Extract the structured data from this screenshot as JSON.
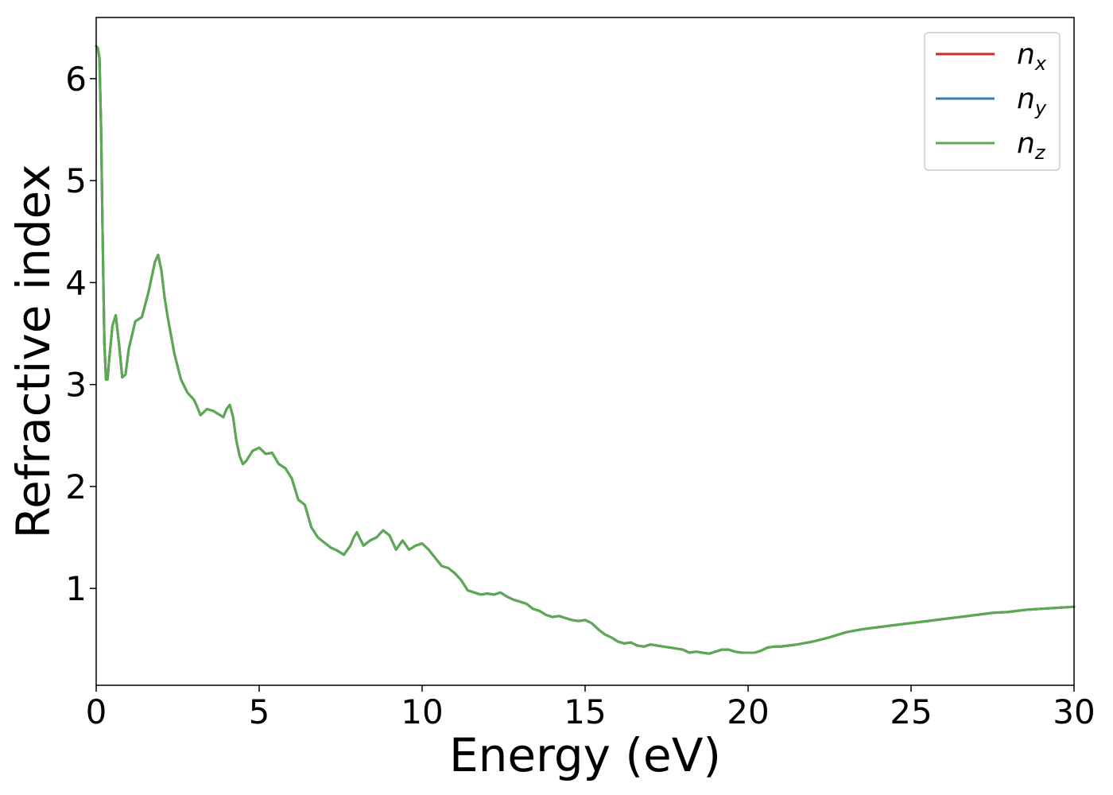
{
  "chart_data": {
    "type": "line",
    "xlabel": "Energy (eV)",
    "ylabel": "Refractive index",
    "xlim": [
      0,
      30
    ],
    "ylim": [
      0.05,
      6.6
    ],
    "xticks": [
      0,
      5,
      10,
      15,
      20,
      25,
      30
    ],
    "yticks": [
      1,
      2,
      3,
      4,
      5,
      6
    ],
    "grid": false,
    "legend_position": "top-right",
    "x": [
      0.0,
      0.05,
      0.1,
      0.15,
      0.2,
      0.25,
      0.3,
      0.35,
      0.4,
      0.5,
      0.6,
      0.7,
      0.8,
      0.9,
      1.0,
      1.2,
      1.4,
      1.6,
      1.7,
      1.8,
      1.9,
      2.0,
      2.1,
      2.2,
      2.4,
      2.6,
      2.8,
      3.0,
      3.1,
      3.2,
      3.4,
      3.6,
      3.8,
      3.9,
      4.0,
      4.1,
      4.2,
      4.3,
      4.4,
      4.5,
      4.6,
      4.8,
      5.0,
      5.2,
      5.4,
      5.6,
      5.8,
      6.0,
      6.2,
      6.4,
      6.6,
      6.8,
      7.0,
      7.2,
      7.4,
      7.6,
      7.8,
      7.9,
      8.0,
      8.2,
      8.4,
      8.6,
      8.8,
      9.0,
      9.2,
      9.4,
      9.6,
      9.8,
      10.0,
      10.2,
      10.4,
      10.6,
      10.8,
      11.0,
      11.2,
      11.4,
      11.6,
      11.8,
      12.0,
      12.2,
      12.4,
      12.6,
      12.8,
      13.0,
      13.2,
      13.4,
      13.6,
      13.8,
      14.0,
      14.2,
      14.4,
      14.6,
      14.8,
      15.0,
      15.2,
      15.4,
      15.6,
      15.8,
      16.0,
      16.2,
      16.4,
      16.6,
      16.8,
      17.0,
      17.2,
      17.4,
      17.6,
      17.8,
      18.0,
      18.2,
      18.4,
      18.6,
      18.8,
      19.0,
      19.2,
      19.4,
      19.6,
      19.8,
      20.0,
      20.2,
      20.4,
      20.6,
      20.8,
      21.0,
      21.5,
      22.0,
      22.5,
      23.0,
      23.5,
      24.0,
      24.5,
      25.0,
      25.5,
      26.0,
      26.5,
      27.0,
      27.5,
      28.0,
      28.5,
      29.0,
      29.5,
      30.0
    ],
    "series": [
      {
        "name": "n_x",
        "color": "#d62728",
        "y": [
          6.32,
          6.3,
          6.2,
          5.5,
          4.4,
          3.4,
          3.05,
          3.05,
          3.25,
          3.58,
          3.68,
          3.4,
          3.07,
          3.1,
          3.35,
          3.62,
          3.66,
          3.9,
          4.05,
          4.2,
          4.27,
          4.12,
          3.85,
          3.65,
          3.3,
          3.05,
          2.92,
          2.85,
          2.78,
          2.7,
          2.76,
          2.74,
          2.7,
          2.68,
          2.76,
          2.8,
          2.68,
          2.45,
          2.3,
          2.22,
          2.25,
          2.35,
          2.38,
          2.32,
          2.33,
          2.22,
          2.18,
          2.08,
          1.87,
          1.82,
          1.6,
          1.5,
          1.45,
          1.4,
          1.37,
          1.33,
          1.42,
          1.5,
          1.55,
          1.42,
          1.47,
          1.5,
          1.57,
          1.52,
          1.38,
          1.47,
          1.38,
          1.42,
          1.44,
          1.38,
          1.3,
          1.22,
          1.2,
          1.15,
          1.08,
          0.98,
          0.96,
          0.94,
          0.95,
          0.94,
          0.96,
          0.92,
          0.89,
          0.87,
          0.85,
          0.8,
          0.78,
          0.74,
          0.72,
          0.73,
          0.71,
          0.69,
          0.68,
          0.69,
          0.66,
          0.6,
          0.55,
          0.52,
          0.48,
          0.46,
          0.47,
          0.44,
          0.43,
          0.45,
          0.44,
          0.43,
          0.42,
          0.41,
          0.4,
          0.37,
          0.38,
          0.37,
          0.36,
          0.38,
          0.4,
          0.4,
          0.38,
          0.37,
          0.37,
          0.37,
          0.39,
          0.42,
          0.43,
          0.43,
          0.45,
          0.48,
          0.52,
          0.57,
          0.6,
          0.62,
          0.64,
          0.66,
          0.68,
          0.7,
          0.72,
          0.74,
          0.76,
          0.77,
          0.79,
          0.8,
          0.81,
          0.82
        ]
      },
      {
        "name": "n_y",
        "color": "#3a7bb0",
        "y": [
          6.32,
          6.3,
          6.2,
          5.5,
          4.4,
          3.4,
          3.05,
          3.05,
          3.25,
          3.58,
          3.68,
          3.4,
          3.07,
          3.1,
          3.35,
          3.62,
          3.66,
          3.9,
          4.05,
          4.2,
          4.27,
          4.12,
          3.85,
          3.65,
          3.3,
          3.05,
          2.92,
          2.85,
          2.78,
          2.7,
          2.76,
          2.74,
          2.7,
          2.68,
          2.76,
          2.8,
          2.68,
          2.45,
          2.3,
          2.22,
          2.25,
          2.35,
          2.38,
          2.32,
          2.33,
          2.22,
          2.18,
          2.08,
          1.87,
          1.82,
          1.6,
          1.5,
          1.45,
          1.4,
          1.37,
          1.33,
          1.42,
          1.5,
          1.55,
          1.42,
          1.47,
          1.5,
          1.57,
          1.52,
          1.38,
          1.47,
          1.38,
          1.42,
          1.44,
          1.38,
          1.3,
          1.22,
          1.2,
          1.15,
          1.08,
          0.98,
          0.96,
          0.94,
          0.95,
          0.94,
          0.96,
          0.92,
          0.89,
          0.87,
          0.85,
          0.8,
          0.78,
          0.74,
          0.72,
          0.73,
          0.71,
          0.69,
          0.68,
          0.69,
          0.66,
          0.6,
          0.55,
          0.52,
          0.48,
          0.46,
          0.47,
          0.44,
          0.43,
          0.45,
          0.44,
          0.43,
          0.42,
          0.41,
          0.4,
          0.37,
          0.38,
          0.37,
          0.36,
          0.38,
          0.4,
          0.4,
          0.38,
          0.37,
          0.37,
          0.37,
          0.39,
          0.42,
          0.43,
          0.43,
          0.45,
          0.48,
          0.52,
          0.57,
          0.6,
          0.62,
          0.64,
          0.66,
          0.68,
          0.7,
          0.72,
          0.74,
          0.76,
          0.77,
          0.79,
          0.8,
          0.81,
          0.82
        ]
      },
      {
        "name": "n_z",
        "color": "#5aaa50",
        "y": [
          6.32,
          6.3,
          6.2,
          5.5,
          4.4,
          3.4,
          3.05,
          3.05,
          3.25,
          3.58,
          3.68,
          3.4,
          3.07,
          3.1,
          3.35,
          3.62,
          3.66,
          3.9,
          4.05,
          4.2,
          4.27,
          4.12,
          3.85,
          3.65,
          3.3,
          3.05,
          2.92,
          2.85,
          2.78,
          2.7,
          2.76,
          2.74,
          2.7,
          2.68,
          2.76,
          2.8,
          2.68,
          2.45,
          2.3,
          2.22,
          2.25,
          2.35,
          2.38,
          2.32,
          2.33,
          2.22,
          2.18,
          2.08,
          1.87,
          1.82,
          1.6,
          1.5,
          1.45,
          1.4,
          1.37,
          1.33,
          1.42,
          1.5,
          1.55,
          1.42,
          1.47,
          1.5,
          1.57,
          1.52,
          1.38,
          1.47,
          1.38,
          1.42,
          1.44,
          1.38,
          1.3,
          1.22,
          1.2,
          1.15,
          1.08,
          0.98,
          0.96,
          0.94,
          0.95,
          0.94,
          0.96,
          0.92,
          0.89,
          0.87,
          0.85,
          0.8,
          0.78,
          0.74,
          0.72,
          0.73,
          0.71,
          0.69,
          0.68,
          0.69,
          0.66,
          0.6,
          0.55,
          0.52,
          0.48,
          0.46,
          0.47,
          0.44,
          0.43,
          0.45,
          0.44,
          0.43,
          0.42,
          0.41,
          0.4,
          0.37,
          0.38,
          0.37,
          0.36,
          0.38,
          0.4,
          0.4,
          0.38,
          0.37,
          0.37,
          0.37,
          0.39,
          0.42,
          0.43,
          0.43,
          0.45,
          0.48,
          0.52,
          0.57,
          0.6,
          0.62,
          0.64,
          0.66,
          0.68,
          0.7,
          0.72,
          0.74,
          0.76,
          0.77,
          0.79,
          0.8,
          0.81,
          0.82
        ]
      }
    ],
    "legend": [
      {
        "base": "n",
        "sub": "x"
      },
      {
        "base": "n",
        "sub": "y"
      },
      {
        "base": "n",
        "sub": "z"
      }
    ]
  }
}
